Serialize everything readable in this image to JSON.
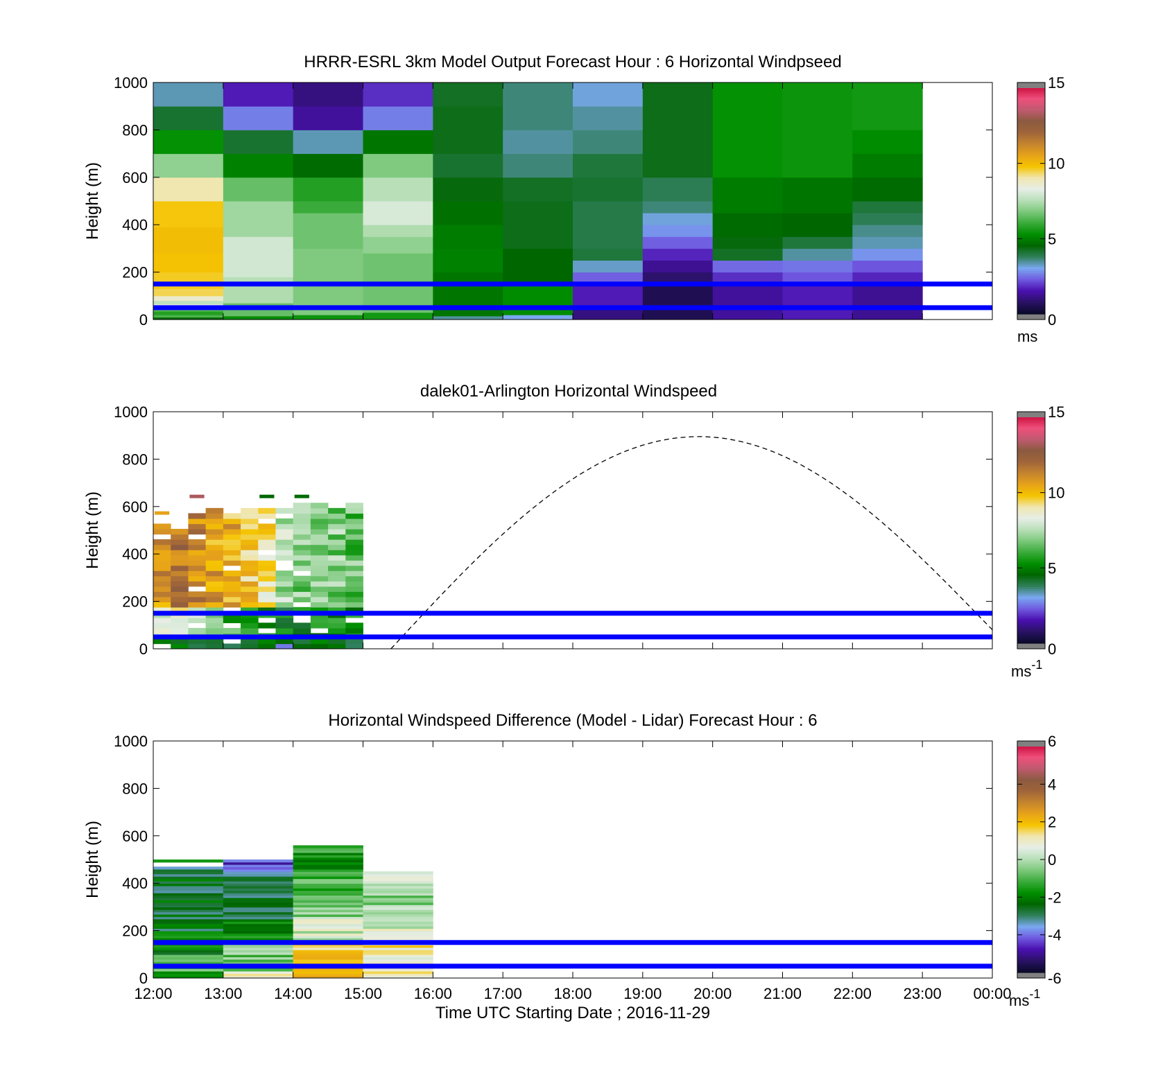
{
  "colors": {
    "speed_scale": [
      "#0a0a2a",
      "#2a1266",
      "#4a10b0",
      "#6f5ae0",
      "#7aa8f0",
      "#2f7f5a",
      "#006600",
      "#008f00",
      "#3aab3a",
      "#7cc87c",
      "#b8dfb8",
      "#e6eee6",
      "#f0e6b0",
      "#f5c400",
      "#e7a21a",
      "#c4842e",
      "#a0653a",
      "#8b5a40",
      "#c05a70",
      "#ee4f7b",
      "#cc1040"
    ],
    "diff_scale": [
      "#0a0a2a",
      "#2a1266",
      "#4a10b0",
      "#6f5ae0",
      "#7aa8f0",
      "#2f7f5a",
      "#006600",
      "#008f00",
      "#3aab3a",
      "#7cc87c",
      "#b8dfb8",
      "#e6eee6",
      "#f0e6b0",
      "#f5c400",
      "#e7a21a",
      "#c4842e",
      "#a0653a",
      "#8b5a40",
      "#c05a70",
      "#ee4f7b",
      "#cc1040"
    ],
    "reference_lines": "#0000ff",
    "cap": "#808080"
  },
  "x_axis": {
    "label": "Time UTC  Starting Date ; 2016-11-29",
    "ticks": [
      "12:00",
      "13:00",
      "14:00",
      "15:00",
      "16:00",
      "17:00",
      "18:00",
      "19:00",
      "20:00",
      "21:00",
      "22:00",
      "23:00",
      "00:00"
    ]
  },
  "chart_data": [
    {
      "type": "heatmap",
      "title": "HRRR-ESRL 3km Model Output   Forecast Hour : 6 Horizontal Windpseed",
      "ylabel": "Height (m)",
      "ylim": [
        0,
        1000
      ],
      "yticks": [
        "0",
        "200",
        "400",
        "600",
        "800",
        "1000"
      ],
      "colorbar": {
        "ticks": [
          "0",
          "5",
          "10",
          "15"
        ],
        "range": [
          0,
          15
        ],
        "unit": "ms"
      },
      "reference_lines_m": [
        150,
        50
      ],
      "columns": [
        {
          "t": 12,
          "cells": [
            [
              0,
              10,
              4.6
            ],
            [
              10,
              20,
              6.2
            ],
            [
              20,
              35,
              5.7
            ],
            [
              35,
              50,
              6.3
            ],
            [
              50,
              65,
              8.4
            ],
            [
              65,
              80,
              7.6
            ],
            [
              80,
              100,
              8.6
            ],
            [
              100,
              130,
              9.4
            ],
            [
              130,
              200,
              9.6
            ],
            [
              200,
              280,
              9.8
            ],
            [
              280,
              390,
              9.9
            ],
            [
              390,
              500,
              9.7
            ],
            [
              500,
              600,
              9.0
            ],
            [
              600,
              700,
              7.0
            ],
            [
              700,
              800,
              5.3
            ],
            [
              800,
              900,
              4.1
            ],
            [
              900,
              1000,
              3.3
            ]
          ]
        },
        {
          "t": 13,
          "cells": [
            [
              0,
              15,
              5.2
            ],
            [
              15,
              70,
              6.5
            ],
            [
              70,
              150,
              7.4
            ],
            [
              150,
              180,
              7.5
            ],
            [
              180,
              350,
              7.9
            ],
            [
              350,
              500,
              7.2
            ],
            [
              500,
              600,
              6.5
            ],
            [
              600,
              700,
              5.0
            ],
            [
              700,
              800,
              4.1
            ],
            [
              800,
              900,
              2.6
            ],
            [
              900,
              1000,
              1.6
            ]
          ]
        },
        {
          "t": 14,
          "cells": [
            [
              0,
              20,
              5.4
            ],
            [
              20,
              300,
              6.8
            ],
            [
              300,
              450,
              6.6
            ],
            [
              450,
              500,
              6.0
            ],
            [
              500,
              600,
              5.7
            ],
            [
              600,
              700,
              4.6
            ],
            [
              700,
              800,
              3.3
            ],
            [
              800,
              900,
              1.3
            ],
            [
              900,
              1000,
              1.0
            ]
          ]
        },
        {
          "t": 15,
          "cells": [
            [
              0,
              30,
              5.5
            ],
            [
              30,
              280,
              6.6
            ],
            [
              280,
              350,
              7.0
            ],
            [
              350,
              400,
              7.4
            ],
            [
              400,
              500,
              8.0
            ],
            [
              500,
              600,
              7.5
            ],
            [
              600,
              700,
              6.8
            ],
            [
              700,
              800,
              4.8
            ],
            [
              800,
              900,
              2.6
            ],
            [
              900,
              1000,
              1.8
            ]
          ]
        },
        {
          "t": 16,
          "cells": [
            [
              0,
              15,
              3.4
            ],
            [
              15,
              200,
              4.8
            ],
            [
              200,
              300,
              5.0
            ],
            [
              300,
              400,
              4.9
            ],
            [
              400,
              500,
              4.7
            ],
            [
              500,
              600,
              4.4
            ],
            [
              600,
              700,
              4.1
            ],
            [
              700,
              800,
              4.3
            ],
            [
              800,
              900,
              4.3
            ],
            [
              900,
              1000,
              4.2
            ]
          ]
        },
        {
          "t": 17,
          "cells": [
            [
              0,
              20,
              3.0
            ],
            [
              20,
              150,
              5.2
            ],
            [
              150,
              300,
              4.5
            ],
            [
              300,
              500,
              4.3
            ],
            [
              500,
              600,
              4.2
            ],
            [
              600,
              700,
              3.6
            ],
            [
              700,
              800,
              3.4
            ],
            [
              800,
              1000,
              3.6
            ]
          ]
        },
        {
          "t": 18,
          "cells": [
            [
              0,
              50,
              1.0
            ],
            [
              50,
              150,
              1.6
            ],
            [
              150,
              200,
              2.3
            ],
            [
              200,
              250,
              3.2
            ],
            [
              250,
              300,
              4.0
            ],
            [
              300,
              500,
              3.9
            ],
            [
              500,
              600,
              4.1
            ],
            [
              600,
              700,
              4.0
            ],
            [
              700,
              800,
              3.6
            ],
            [
              800,
              900,
              3.4
            ],
            [
              900,
              1000,
              3.1
            ]
          ]
        },
        {
          "t": 19,
          "cells": [
            [
              0,
              150,
              0.5
            ],
            [
              150,
              200,
              0.8
            ],
            [
              200,
              250,
              1.2
            ],
            [
              250,
              300,
              1.7
            ],
            [
              300,
              350,
              2.3
            ],
            [
              350,
              400,
              2.8
            ],
            [
              400,
              450,
              3.1
            ],
            [
              450,
              500,
              3.6
            ],
            [
              500,
              600,
              3.8
            ],
            [
              600,
              1000,
              4.3
            ]
          ]
        },
        {
          "t": 20,
          "cells": [
            [
              0,
              150,
              1.3
            ],
            [
              150,
              200,
              1.8
            ],
            [
              200,
              250,
              2.4
            ],
            [
              250,
              300,
              4.2
            ],
            [
              300,
              350,
              4.4
            ],
            [
              350,
              450,
              4.6
            ],
            [
              450,
              600,
              4.9
            ],
            [
              600,
              1000,
              5.3
            ]
          ]
        },
        {
          "t": 21,
          "cells": [
            [
              0,
              150,
              1.6
            ],
            [
              150,
              200,
              2.2
            ],
            [
              200,
              250,
              2.5
            ],
            [
              250,
              300,
              3.4
            ],
            [
              300,
              350,
              4.0
            ],
            [
              350,
              450,
              4.5
            ],
            [
              450,
              600,
              4.8
            ],
            [
              600,
              1000,
              5.4
            ]
          ]
        },
        {
          "t": 22,
          "cells": [
            [
              0,
              150,
              1.2
            ],
            [
              150,
              200,
              1.7
            ],
            [
              200,
              250,
              2.2
            ],
            [
              250,
              300,
              2.8
            ],
            [
              300,
              350,
              3.3
            ],
            [
              350,
              400,
              3.5
            ],
            [
              400,
              450,
              3.8
            ],
            [
              450,
              500,
              4.0
            ],
            [
              500,
              600,
              4.6
            ],
            [
              600,
              700,
              4.9
            ],
            [
              700,
              800,
              5.2
            ],
            [
              800,
              1000,
              5.5
            ]
          ]
        }
      ]
    },
    {
      "type": "heatmap",
      "title": "dalek01-Arlington  Horizontal Windspeed",
      "ylabel": "Height (m)",
      "ylim": [
        0,
        1000
      ],
      "yticks": [
        "0",
        "200",
        "400",
        "600",
        "800",
        "1000"
      ],
      "colorbar": {
        "ticks": [
          "0",
          "5",
          "10",
          "15"
        ],
        "range": [
          0,
          15
        ],
        "unit": "ms",
        "unit_exp": "-1"
      },
      "reference_lines_m": [
        150,
        50
      ],
      "profiles": [
        {
          "t": 12.0,
          "top": 520,
          "mid": 10.8,
          "low": 8.0
        },
        {
          "t": 12.25,
          "top": 500,
          "mid": 11.6,
          "low": 8.4
        },
        {
          "t": 12.5,
          "top": 560,
          "mid": 11.2,
          "low": 8.2
        },
        {
          "t": 12.75,
          "top": 580,
          "mid": 10.5,
          "low": 7.0
        },
        {
          "t": 13.0,
          "top": 580,
          "mid": 10.2,
          "low": 6.0
        },
        {
          "t": 13.25,
          "top": 590,
          "mid": 9.6,
          "low": 5.4
        },
        {
          "t": 13.5,
          "top": 590,
          "mid": 9.2,
          "low": 5.0
        },
        {
          "t": 13.75,
          "top": 590,
          "mid": 7.4,
          "low": 4.8
        },
        {
          "t": 14.0,
          "top": 600,
          "mid": 6.9,
          "low": 4.9
        },
        {
          "t": 14.25,
          "top": 610,
          "mid": 7.1,
          "low": 5.2
        },
        {
          "t": 14.5,
          "top": 590,
          "mid": 6.9,
          "low": 5.3
        },
        {
          "t": 14.75,
          "top": 610,
          "mid": 6.5,
          "low": 5.4
        }
      ],
      "isolated_marks": [
        {
          "t": 12.0,
          "h": 580,
          "v": 10.5
        },
        {
          "t": 12.5,
          "h": 650,
          "v": 13.2
        },
        {
          "t": 13.5,
          "h": 650,
          "v": 4.5
        },
        {
          "t": 14.0,
          "h": 650,
          "v": 4.6
        }
      ],
      "arc": {
        "t_start": 15.4,
        "t_peak": 19.8,
        "t_end": 24.0,
        "h_peak": 895,
        "h_end": 80
      }
    },
    {
      "type": "heatmap",
      "title": "Horizontal Windspeed Difference (Model - Lidar) Forecast Hour : 6",
      "ylabel": "Height (m)",
      "ylim": [
        0,
        1000
      ],
      "yticks": [
        "0",
        "200",
        "400",
        "600",
        "800",
        "1000"
      ],
      "colorbar": {
        "ticks": [
          "-6",
          "-4",
          "-2",
          "0",
          "2",
          "4",
          "6"
        ],
        "range": [
          -6,
          6
        ],
        "unit": "ms",
        "unit_exp": "-1"
      },
      "reference_lines_m": [
        150,
        50
      ],
      "columns": [
        {
          "t": 12,
          "top": 470,
          "bands": [
            [
              0,
              100,
              -1.2
            ],
            [
              100,
              200,
              -1.9
            ],
            [
              200,
              470,
              -2.7
            ]
          ],
          "extra": [
            [
              490,
              500,
              -1.6
            ]
          ]
        },
        {
          "t": 13,
          "top": 500,
          "bands": [
            [
              0,
              30,
              0.8
            ],
            [
              30,
              150,
              -0.6
            ],
            [
              150,
              250,
              -1.6
            ],
            [
              250,
              400,
              -2.8
            ],
            [
              400,
              450,
              -3.2
            ],
            [
              450,
              500,
              -4.6
            ]
          ]
        },
        {
          "t": 14,
          "top": 560,
          "bands": [
            [
              0,
              150,
              1.8
            ],
            [
              150,
              250,
              0.3
            ],
            [
              250,
              350,
              -0.4
            ],
            [
              350,
              450,
              -1.0
            ],
            [
              450,
              560,
              -1.6
            ]
          ]
        },
        {
          "t": 15,
          "top": 450,
          "bands": [
            [
              0,
              150,
              1.2
            ],
            [
              150,
              300,
              0.4
            ],
            [
              300,
              400,
              -0.5
            ],
            [
              400,
              450,
              0.9
            ]
          ]
        }
      ]
    }
  ]
}
